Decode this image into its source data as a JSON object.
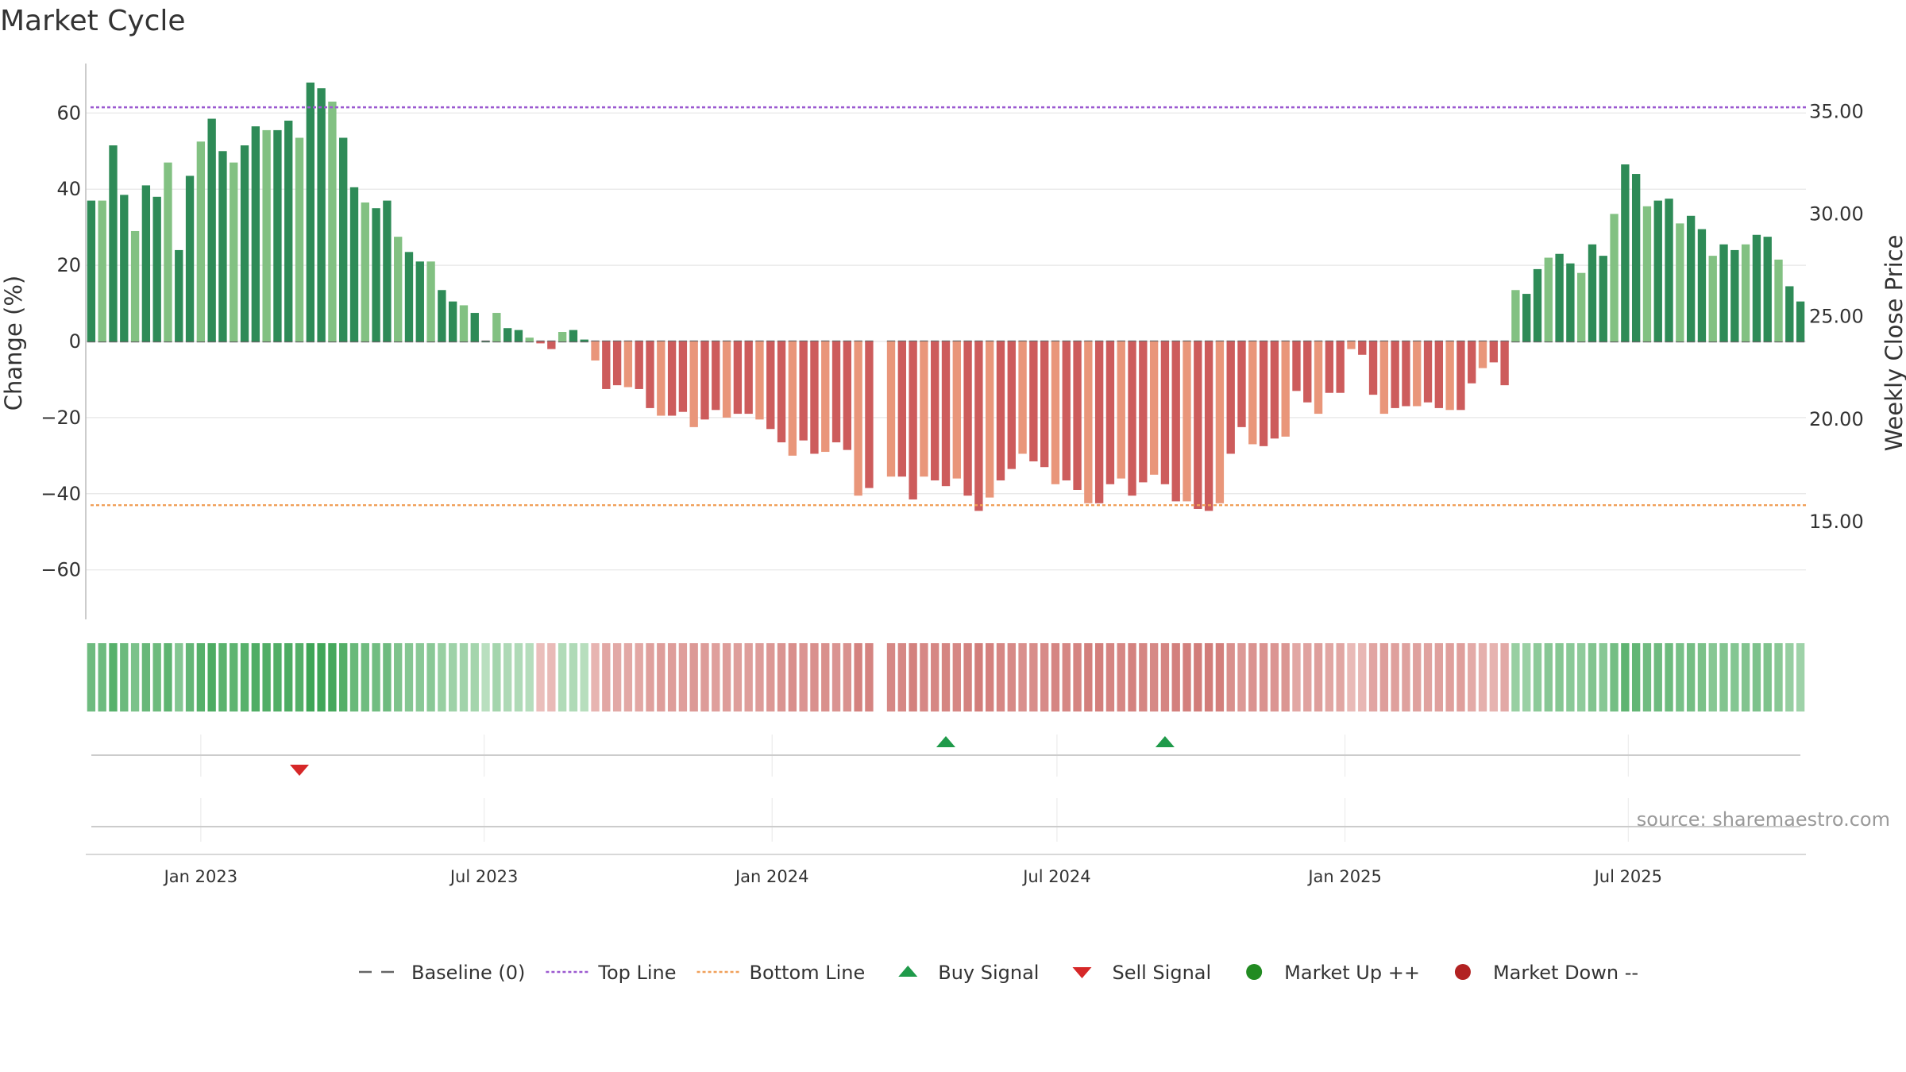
{
  "chart_data": {
    "type": "bar",
    "title": "Market Cycle",
    "ylabel": "Change (%)",
    "y2label": "Weekly Close Price",
    "ylim": [
      -73,
      73
    ],
    "y2lim": [
      10.2,
      37.3
    ],
    "yticks": [
      60,
      40,
      20,
      0,
      -20,
      -40,
      -60
    ],
    "ytick_labels": [
      "60",
      "40",
      "20",
      "0",
      "−20",
      "−40",
      "−60"
    ],
    "y2ticks": [
      35,
      30,
      25,
      20,
      15
    ],
    "y2tick_labels": [
      "35.00",
      "30.00",
      "25.00",
      "20.00",
      "15.00"
    ],
    "x_start": "2022-10-23",
    "x_step_days": 7,
    "xticks": [
      {
        "date": "2023-01-01",
        "label": "Jan 2023"
      },
      {
        "date": "2023-07-01",
        "label": "Jul 2023"
      },
      {
        "date": "2024-01-01",
        "label": "Jan 2024"
      },
      {
        "date": "2024-07-01",
        "label": "Jul 2024"
      },
      {
        "date": "2025-01-01",
        "label": "Jan 2025"
      },
      {
        "date": "2025-07-01",
        "label": "Jul 2025"
      }
    ],
    "values": [
      37,
      37,
      51.5,
      38.5,
      29,
      41,
      38,
      47,
      24,
      43.5,
      52.5,
      58.5,
      50,
      47,
      51.5,
      56.5,
      55.5,
      55.5,
      58,
      53.5,
      68,
      66.5,
      63,
      53.5,
      40.5,
      36.5,
      35,
      37,
      27.5,
      23.5,
      21,
      21,
      13.5,
      10.5,
      9.5,
      7.5,
      0,
      7.5,
      3.5,
      3,
      1,
      -0.5,
      -2,
      2.5,
      3,
      0.5,
      -5,
      -12.5,
      -11.5,
      -12,
      -12.5,
      -17.5,
      -19.5,
      -19.5,
      -18.5,
      -22.5,
      -20.5,
      -18,
      -20,
      -19,
      -19,
      -20.5,
      -23,
      -26.5,
      -30,
      -26,
      -29.5,
      -29,
      -26.5,
      -28.5,
      -40.5,
      -38.5,
      null,
      -35.5,
      -35.5,
      -41.5,
      -35.5,
      -36.5,
      -38,
      -36,
      -40.5,
      -44.5,
      -41,
      -36.5,
      -33.5,
      -29.5,
      -31.5,
      -33,
      -37.5,
      -36.5,
      -39,
      -42.5,
      -42.5,
      -37.5,
      -36,
      -40.5,
      -37,
      -35,
      -37.5,
      -42,
      -42,
      -44,
      -44.5,
      -42.5,
      -29.5,
      -22.5,
      -27,
      -27.5,
      -25.5,
      -25,
      -13,
      -16,
      -19,
      -13.5,
      -13.5,
      -2,
      -3.5,
      -14,
      -19,
      -17.5,
      -17,
      -17,
      -16,
      -17.5,
      -18,
      -18,
      -11,
      -7,
      -5.5,
      -11.5,
      13.5,
      12.5,
      19,
      22,
      23,
      20.5,
      18,
      25.5,
      22.5,
      33.5,
      46.5,
      44,
      35.5,
      37,
      37.5,
      31,
      33,
      29.5,
      22.5,
      25.5,
      24,
      25.5,
      28,
      27.5,
      21.5,
      14.5,
      10.5
    ],
    "series_colors": {
      "up_strong": "#2e8b57",
      "up_light": "#82c182",
      "down_strong": "#cd5c5c",
      "down_light": "#e9967a"
    },
    "top_line": 61.5,
    "bottom_line": -43,
    "heat_colors": {
      "up": "#3fa556",
      "down": "#c8625f",
      "up_pale": "#cfe9d2",
      "down_pale": "#f1d0cd"
    },
    "buy_signals": [
      "2024-04-21",
      "2024-09-08"
    ],
    "sell_signals": [
      "2023-03-05"
    ],
    "source": "source: sharemaestro.com",
    "legend": [
      {
        "label": "Baseline (0)",
        "symbol": "dash",
        "color": "#666666"
      },
      {
        "label": "Top Line",
        "symbol": "dotted",
        "color": "#9b59d0"
      },
      {
        "label": "Bottom Line",
        "symbol": "dotted",
        "color": "#f0a05a"
      },
      {
        "label": "Buy Signal",
        "symbol": "triangle-up",
        "color": "#1f9a4a"
      },
      {
        "label": "Sell Signal",
        "symbol": "triangle-down",
        "color": "#d62728"
      },
      {
        "label": "Market Up ++",
        "symbol": "circle",
        "color": "#228b22"
      },
      {
        "label": "Market Down --",
        "symbol": "circle",
        "color": "#b22222"
      }
    ]
  }
}
